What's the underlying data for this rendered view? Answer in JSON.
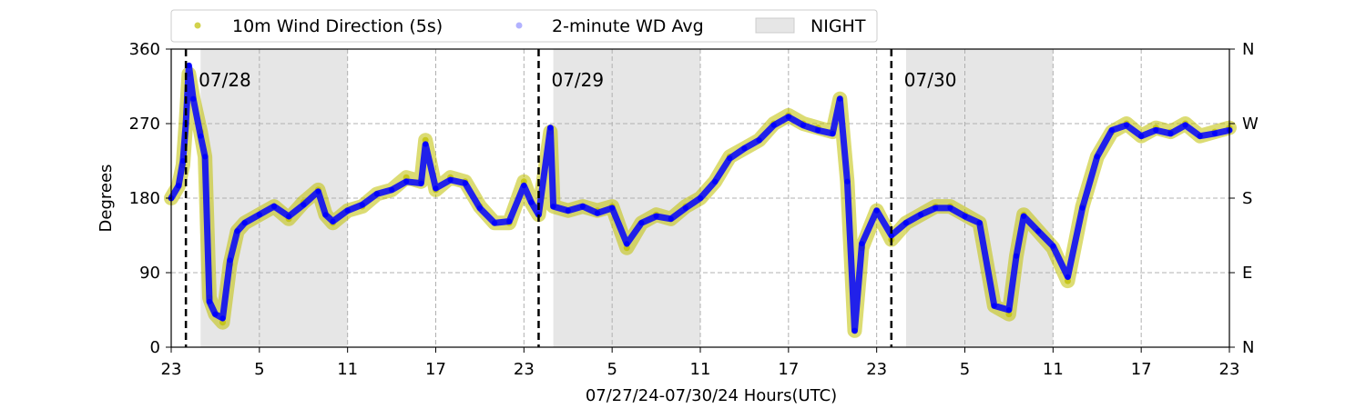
{
  "chart_data": {
    "type": "scatter",
    "title": "",
    "xlabel": "07/27/24-07/30/24  Hours(UTC)",
    "ylabel": "Degrees",
    "ylim": [
      0,
      360
    ],
    "x_unit": "hours since 07/27/24 23:00 UTC",
    "xlim": [
      0,
      72
    ],
    "x_ticks": [
      0,
      6,
      12,
      18,
      24,
      30,
      36,
      42,
      48,
      54,
      60,
      66,
      72
    ],
    "x_tick_labels": [
      "23",
      "5",
      "11",
      "17",
      "23",
      "5",
      "11",
      "17",
      "23",
      "5",
      "11",
      "17",
      "23"
    ],
    "y_ticks": [
      0,
      90,
      180,
      270,
      360
    ],
    "y_tick_labels": [
      "0",
      "90",
      "180",
      "270",
      "360"
    ],
    "y2_tick_labels": [
      "N",
      "E",
      "S",
      "W",
      "N"
    ],
    "grid": true,
    "legend_position": "top-left, outside",
    "day_markers": [
      {
        "x": 1,
        "label": "07/28"
      },
      {
        "x": 25,
        "label": "07/29"
      },
      {
        "x": 49,
        "label": "07/30"
      }
    ],
    "night_periods": [
      [
        2,
        12
      ],
      [
        26,
        36
      ],
      [
        50,
        60
      ]
    ],
    "series": [
      {
        "name": "10m Wind Direction (5s)",
        "color": "#bfbf00",
        "points": [
          [
            0,
            180
          ],
          [
            0.5,
            195
          ],
          [
            0.8,
            220
          ],
          [
            1,
            270
          ],
          [
            1.2,
            330
          ],
          [
            1.5,
            300
          ],
          [
            2,
            260
          ],
          [
            2.3,
            230
          ],
          [
            2.6,
            60
          ],
          [
            3,
            40
          ],
          [
            3.5,
            30
          ],
          [
            4,
            100
          ],
          [
            4.5,
            140
          ],
          [
            5,
            150
          ],
          [
            6,
            160
          ],
          [
            7,
            170
          ],
          [
            8,
            155
          ],
          [
            9,
            175
          ],
          [
            10,
            190
          ],
          [
            10.5,
            160
          ],
          [
            11,
            150
          ],
          [
            12,
            165
          ],
          [
            13,
            170
          ],
          [
            14,
            185
          ],
          [
            15,
            190
          ],
          [
            16,
            205
          ],
          [
            17,
            200
          ],
          [
            17.3,
            250
          ],
          [
            18,
            190
          ],
          [
            19,
            205
          ],
          [
            20,
            200
          ],
          [
            21,
            170
          ],
          [
            22,
            150
          ],
          [
            23,
            150
          ],
          [
            24,
            200
          ],
          [
            24.5,
            175
          ],
          [
            25,
            160
          ],
          [
            25.8,
            260
          ],
          [
            26,
            170
          ],
          [
            27,
            165
          ],
          [
            28,
            170
          ],
          [
            29,
            165
          ],
          [
            30,
            170
          ],
          [
            31,
            120
          ],
          [
            32,
            150
          ],
          [
            33,
            160
          ],
          [
            34,
            155
          ],
          [
            35,
            170
          ],
          [
            36,
            180
          ],
          [
            37,
            200
          ],
          [
            38,
            230
          ],
          [
            39,
            240
          ],
          [
            40,
            250
          ],
          [
            41,
            270
          ],
          [
            42,
            280
          ],
          [
            43,
            270
          ],
          [
            44,
            265
          ],
          [
            45,
            260
          ],
          [
            45.5,
            300
          ],
          [
            46,
            200
          ],
          [
            46.5,
            20
          ],
          [
            47,
            120
          ],
          [
            48,
            165
          ],
          [
            49,
            130
          ],
          [
            50,
            150
          ],
          [
            51,
            160
          ],
          [
            52,
            170
          ],
          [
            53,
            170
          ],
          [
            54,
            160
          ],
          [
            55,
            150
          ],
          [
            56,
            50
          ],
          [
            57,
            40
          ],
          [
            57.5,
            110
          ],
          [
            58,
            160
          ],
          [
            59,
            140
          ],
          [
            60,
            120
          ],
          [
            61,
            80
          ],
          [
            62,
            170
          ],
          [
            63,
            230
          ],
          [
            64,
            260
          ],
          [
            65,
            270
          ],
          [
            66,
            255
          ],
          [
            67,
            265
          ],
          [
            68,
            260
          ],
          [
            69,
            270
          ],
          [
            70,
            255
          ],
          [
            71,
            260
          ],
          [
            72,
            265
          ]
        ]
      },
      {
        "name": "2-minute WD Avg",
        "color": "#0000ff",
        "points": [
          [
            0,
            180
          ],
          [
            0.5,
            195
          ],
          [
            0.8,
            225
          ],
          [
            1,
            270
          ],
          [
            1.2,
            340
          ],
          [
            1.5,
            300
          ],
          [
            2,
            255
          ],
          [
            2.3,
            230
          ],
          [
            2.6,
            55
          ],
          [
            3,
            40
          ],
          [
            3.5,
            35
          ],
          [
            4,
            105
          ],
          [
            4.5,
            140
          ],
          [
            5,
            150
          ],
          [
            6,
            160
          ],
          [
            7,
            170
          ],
          [
            8,
            158
          ],
          [
            9,
            172
          ],
          [
            10,
            188
          ],
          [
            10.5,
            160
          ],
          [
            11,
            152
          ],
          [
            12,
            165
          ],
          [
            13,
            172
          ],
          [
            14,
            185
          ],
          [
            15,
            190
          ],
          [
            16,
            200
          ],
          [
            17,
            198
          ],
          [
            17.3,
            245
          ],
          [
            18,
            192
          ],
          [
            19,
            202
          ],
          [
            20,
            198
          ],
          [
            21,
            168
          ],
          [
            22,
            150
          ],
          [
            23,
            152
          ],
          [
            24,
            195
          ],
          [
            24.5,
            175
          ],
          [
            25,
            160
          ],
          [
            25.8,
            265
          ],
          [
            26,
            170
          ],
          [
            27,
            165
          ],
          [
            28,
            170
          ],
          [
            29,
            162
          ],
          [
            30,
            168
          ],
          [
            31,
            125
          ],
          [
            32,
            150
          ],
          [
            33,
            158
          ],
          [
            34,
            155
          ],
          [
            35,
            168
          ],
          [
            36,
            180
          ],
          [
            37,
            200
          ],
          [
            38,
            228
          ],
          [
            39,
            240
          ],
          [
            40,
            250
          ],
          [
            41,
            268
          ],
          [
            42,
            278
          ],
          [
            43,
            268
          ],
          [
            44,
            262
          ],
          [
            45,
            258
          ],
          [
            45.5,
            300
          ],
          [
            46,
            200
          ],
          [
            46.5,
            20
          ],
          [
            47,
            125
          ],
          [
            48,
            165
          ],
          [
            49,
            135
          ],
          [
            50,
            150
          ],
          [
            51,
            160
          ],
          [
            52,
            168
          ],
          [
            53,
            168
          ],
          [
            54,
            158
          ],
          [
            55,
            150
          ],
          [
            56,
            50
          ],
          [
            57,
            45
          ],
          [
            57.5,
            110
          ],
          [
            58,
            158
          ],
          [
            59,
            140
          ],
          [
            60,
            122
          ],
          [
            61,
            85
          ],
          [
            62,
            168
          ],
          [
            63,
            230
          ],
          [
            64,
            262
          ],
          [
            65,
            268
          ],
          [
            66,
            255
          ],
          [
            67,
            262
          ],
          [
            68,
            258
          ],
          [
            69,
            268
          ],
          [
            70,
            255
          ],
          [
            71,
            258
          ],
          [
            72,
            262
          ]
        ]
      }
    ],
    "night_legend_label": "NIGHT",
    "night_color": "#e6e6e6"
  }
}
